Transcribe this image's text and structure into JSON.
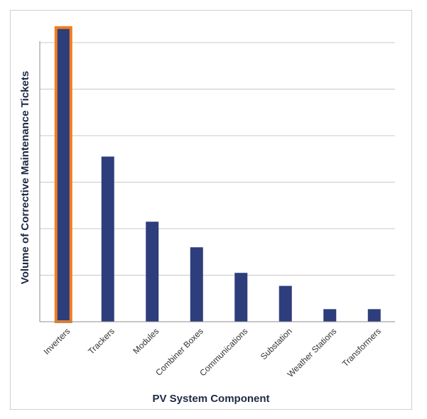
{
  "chart_data": {
    "type": "bar",
    "title": "",
    "xlabel": "PV System Component",
    "ylabel": "Volume of Corrective Maintenance Tickets",
    "categories": [
      "Inverters",
      "Trackers",
      "Modules",
      "Combiner Boxes",
      "Communications",
      "Substation",
      "Weather Stations",
      "Transformers"
    ],
    "values": [
      6.3,
      3.55,
      2.15,
      1.6,
      1.05,
      0.77,
      0.27,
      0.27
    ],
    "ylim": [
      0,
      6
    ],
    "yticks": [
      0,
      1,
      2,
      3,
      4,
      5,
      6
    ],
    "show_y_tick_labels": false,
    "grid": true,
    "highlight_category": "Inverters",
    "colors": {
      "bar": "#2e3d7c",
      "highlight_border": "#f07d1e",
      "grid": "#c8c8c8",
      "axis": "#8c8c8c"
    }
  }
}
